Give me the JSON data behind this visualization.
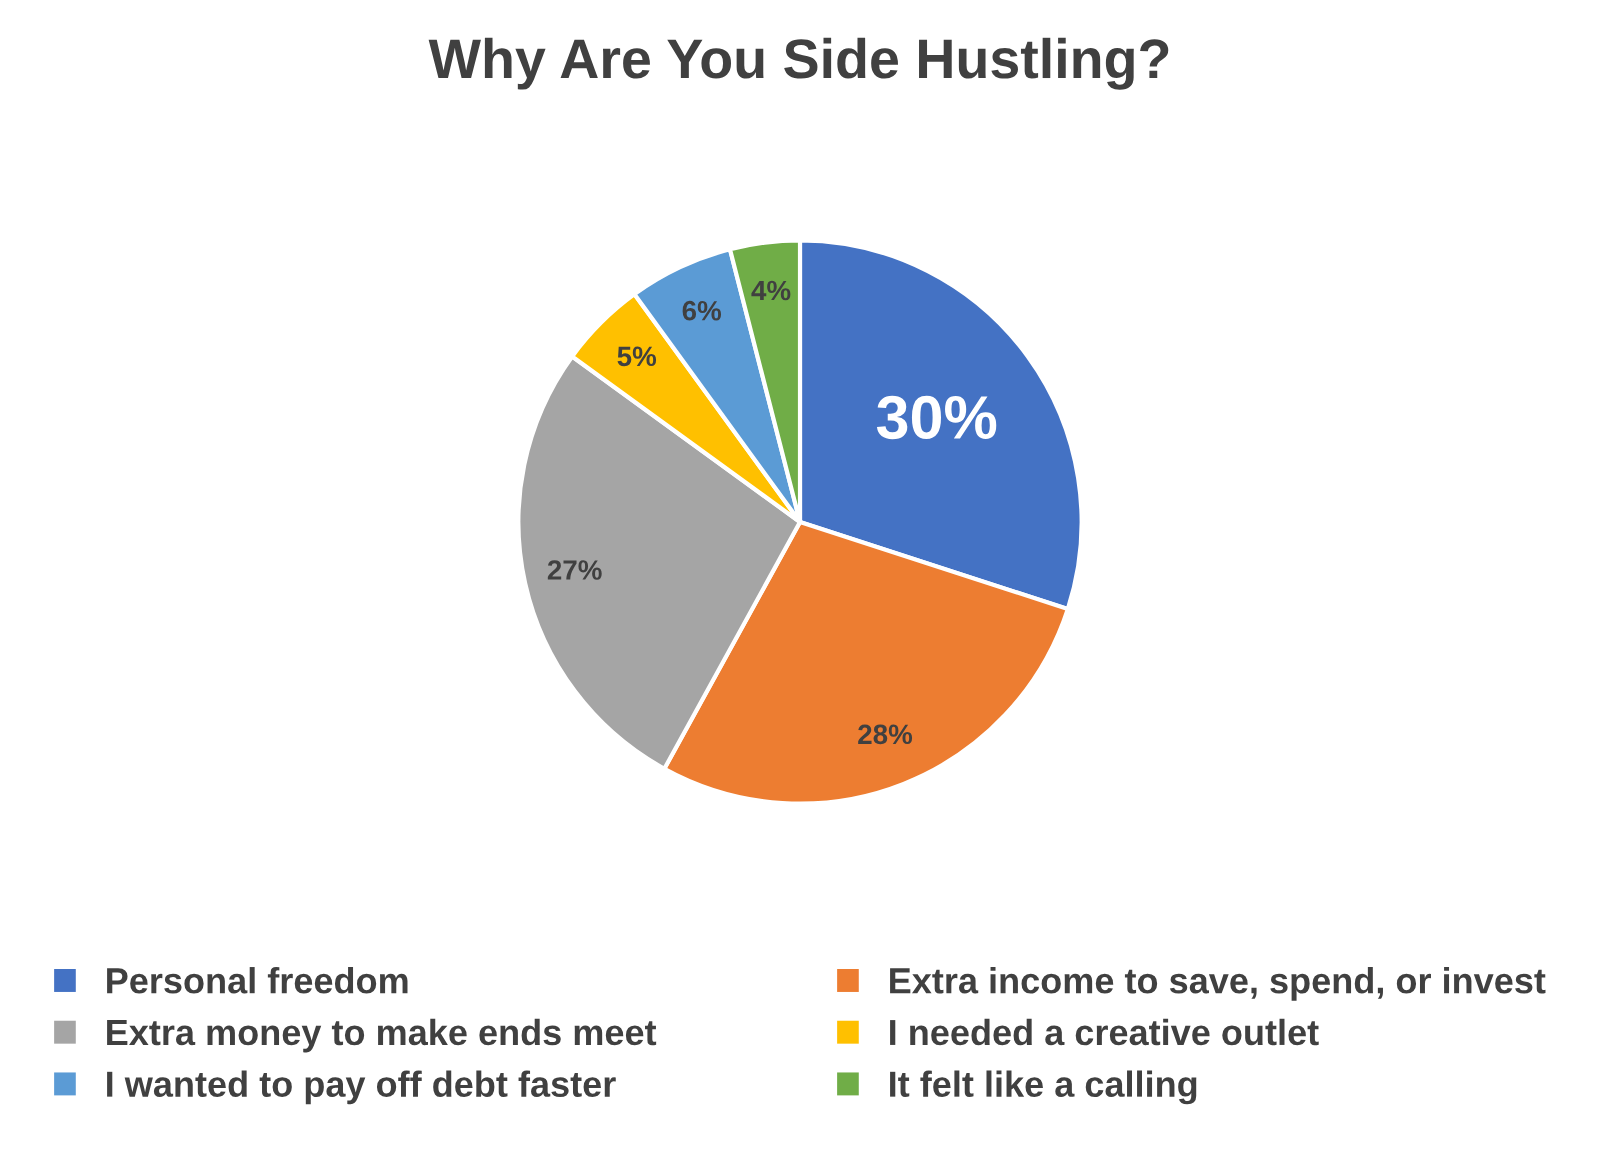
{
  "chart_data": {
    "type": "pie",
    "title": "Why Are You Side Hustling?",
    "categories": [
      "Personal freedom",
      "Extra income to save, spend, or invest",
      "Extra money to make ends meet",
      "I needed a creative outlet",
      "I wanted to pay off debt faster",
      "It felt like a calling"
    ],
    "values": [
      30,
      28,
      27,
      5,
      6,
      4
    ],
    "colors": [
      "#4472c4",
      "#ed7d31",
      "#a5a5a5",
      "#ffc000",
      "#5b9bd5",
      "#70ad47"
    ],
    "value_labels": [
      "30%",
      "28%",
      "27%",
      "5%",
      "6%",
      "4%"
    ],
    "legend": "bottom"
  }
}
